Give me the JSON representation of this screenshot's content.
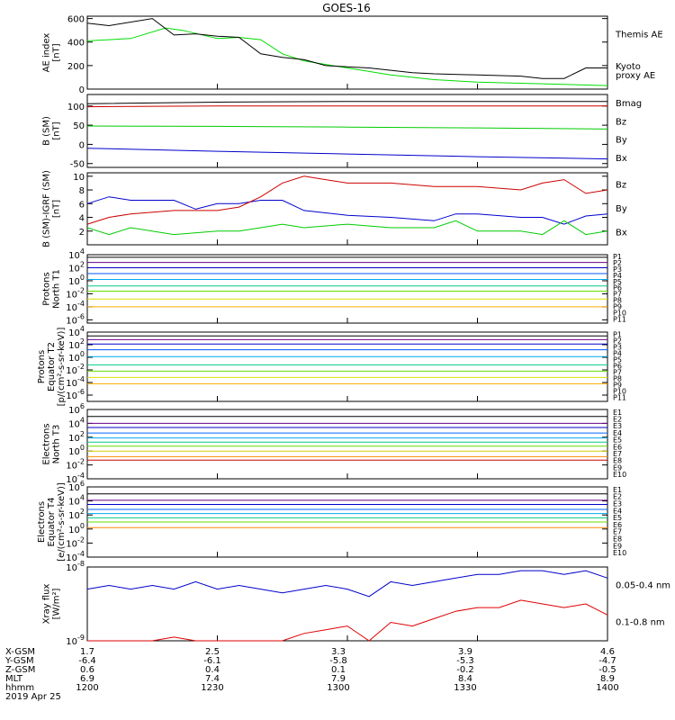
{
  "title": "GOES-16",
  "footer": {
    "rows": [
      {
        "label": "X-GSM",
        "values": [
          "1.7",
          "2.5",
          "3.3",
          "3.9",
          "4.6"
        ]
      },
      {
        "label": "Y-GSM",
        "values": [
          "-6.4",
          "-6.1",
          "-5.8",
          "-5.3",
          "-4.7"
        ]
      },
      {
        "label": "Z-GSM",
        "values": [
          "0.6",
          "0.4",
          "0.1",
          "-0.2",
          "-0.5"
        ]
      },
      {
        "label": "MLT",
        "values": [
          "6.9",
          "7.4",
          "7.9",
          "8.4",
          "8.9"
        ]
      },
      {
        "label": "hhmm",
        "values": [
          "1200",
          "1230",
          "1300",
          "1330",
          "1400"
        ]
      }
    ],
    "date": "2019 Apr 25"
  },
  "chart_data": [
    {
      "type": "line",
      "ylabel": "AE index\n[nT]",
      "ylim": [
        0,
        620
      ],
      "yticks": [
        {
          "v": 0,
          "l": "0"
        },
        {
          "v": 200,
          "l": "200"
        },
        {
          "v": 400,
          "l": "400"
        },
        {
          "v": 600,
          "l": "600"
        }
      ],
      "series": [
        {
          "name": "Kyoto\nproxy AE",
          "color": "#00dd00",
          "x": [
            0,
            10,
            18,
            22,
            30,
            35,
            40,
            45,
            50,
            55,
            60,
            65,
            70,
            75,
            80,
            90,
            100,
            110,
            120
          ],
          "y": [
            410,
            430,
            520,
            500,
            430,
            440,
            420,
            300,
            240,
            210,
            180,
            150,
            120,
            100,
            80,
            60,
            50,
            40,
            30
          ]
        },
        {
          "name": "Themis AE",
          "color": "#000000",
          "x": [
            0,
            5,
            15,
            20,
            25,
            30,
            35,
            40,
            45,
            50,
            55,
            60,
            65,
            70,
            75,
            80,
            90,
            100,
            105,
            110,
            115,
            120
          ],
          "y": [
            560,
            540,
            600,
            460,
            470,
            450,
            440,
            300,
            270,
            250,
            200,
            190,
            180,
            160,
            140,
            130,
            120,
            110,
            90,
            90,
            180,
            180
          ]
        }
      ]
    },
    {
      "type": "line",
      "ylabel": "B (SM)\n[nT]",
      "ylim": [
        -60,
        130
      ],
      "yticks": [
        {
          "v": -50,
          "l": "-50"
        },
        {
          "v": 0,
          "l": "0"
        },
        {
          "v": 50,
          "l": "50"
        },
        {
          "v": 100,
          "l": "100"
        }
      ],
      "series": [
        {
          "name": "Bx",
          "color": "#0000cc",
          "x": [
            0,
            30,
            60,
            90,
            120
          ],
          "y": [
            -10,
            -18,
            -25,
            -32,
            -38
          ]
        },
        {
          "name": "By",
          "color": "#00cc00",
          "x": [
            0,
            30,
            60,
            90,
            120
          ],
          "y": [
            48,
            47,
            45,
            43,
            40
          ]
        },
        {
          "name": "Bz",
          "color": "#cc0000",
          "x": [
            0,
            30,
            60,
            90,
            120
          ],
          "y": [
            98,
            100,
            100,
            100,
            100
          ]
        },
        {
          "name": "Bmag",
          "color": "#000000",
          "x": [
            0,
            30,
            60,
            90,
            120
          ],
          "y": [
            106,
            110,
            112,
            112,
            112
          ]
        }
      ]
    },
    {
      "type": "line",
      "ylabel": "B (SM)-IGRF (SM)\n[nT]",
      "ylim": [
        0,
        10.5
      ],
      "yticks": [
        {
          "v": 2,
          "l": "2"
        },
        {
          "v": 4,
          "l": "4"
        },
        {
          "v": 6,
          "l": "6"
        },
        {
          "v": 8,
          "l": "8"
        },
        {
          "v": 10,
          "l": "10"
        }
      ],
      "series": [
        {
          "name": "Bx",
          "color": "#0000cc",
          "x": [
            0,
            5,
            10,
            20,
            25,
            30,
            35,
            40,
            45,
            50,
            60,
            70,
            80,
            85,
            90,
            100,
            105,
            110,
            115,
            120
          ],
          "y": [
            6,
            7,
            6.5,
            6.5,
            5.2,
            6,
            6,
            6.5,
            6.5,
            5,
            4.3,
            4,
            3.5,
            4.5,
            4.5,
            4,
            4,
            3,
            4.2,
            4.5
          ]
        },
        {
          "name": "By",
          "color": "#00cc00",
          "x": [
            0,
            5,
            10,
            20,
            30,
            35,
            40,
            45,
            50,
            60,
            70,
            80,
            85,
            90,
            100,
            105,
            110,
            115,
            120
          ],
          "y": [
            2.5,
            1.5,
            2.5,
            1.5,
            2,
            2,
            2.5,
            3,
            2.5,
            3,
            2.5,
            2.5,
            3.5,
            2,
            2,
            1.5,
            3.5,
            1.5,
            2
          ]
        },
        {
          "name": "Bz",
          "color": "#cc0000",
          "x": [
            0,
            5,
            10,
            20,
            30,
            35,
            40,
            45,
            50,
            55,
            60,
            70,
            80,
            90,
            100,
            105,
            110,
            115,
            120
          ],
          "y": [
            3,
            4,
            4.5,
            5,
            5,
            5.5,
            7,
            9,
            10,
            9.5,
            9,
            9,
            8.5,
            8.5,
            8,
            9,
            9.5,
            7.5,
            8
          ]
        }
      ]
    },
    {
      "type": "line",
      "ylabel": "Protons\nNorth T1",
      "log": true,
      "ylim": [
        -6.5,
        4
      ],
      "yticks": [
        {
          "v": 4,
          "l": "10^4"
        },
        {
          "v": 2,
          "l": "10^2"
        },
        {
          "v": 0,
          "l": "10^0"
        },
        {
          "v": -2,
          "l": "10^-2"
        },
        {
          "v": -4,
          "l": "10^-4"
        },
        {
          "v": -6,
          "l": "10^-6"
        }
      ],
      "legend": [
        "P1",
        "P2",
        "P3",
        "P4",
        "P5",
        "P6",
        "P7",
        "P8",
        "P9",
        "P10",
        "P11"
      ],
      "series": [
        {
          "name": "P1",
          "color": "#000000",
          "y": [
            3.6
          ]
        },
        {
          "name": "P2",
          "color": "#660088",
          "y": [
            2.8
          ]
        },
        {
          "name": "P3",
          "color": "#0000cc",
          "y": [
            2.0
          ]
        },
        {
          "name": "P4",
          "color": "#0055ff",
          "y": [
            1.1
          ]
        },
        {
          "name": "P5",
          "color": "#00aaee",
          "y": [
            0.2
          ]
        },
        {
          "name": "P6",
          "color": "#00cc88",
          "y": [
            -0.8
          ]
        },
        {
          "name": "P7",
          "color": "#66dd00",
          "y": [
            -1.6
          ]
        },
        {
          "name": "P8",
          "color": "#dddd00",
          "y": [
            -2.8
          ]
        },
        {
          "name": "P9",
          "color": "#ffaa00",
          "y": [
            -4.0
          ]
        }
      ],
      "legendColors": [
        "#000000",
        "#660088",
        "#0000cc",
        "#0055ff",
        "#00aaee",
        "#00cc88",
        "#66dd00",
        "#dddd00",
        "#ffaa00",
        "#ff5500",
        "#cc0000"
      ]
    },
    {
      "type": "line",
      "ylabel": "Protons\nEquator T2\n[p/(cm²-s-sr-keV)]",
      "log": true,
      "ylim": [
        -7,
        4
      ],
      "yticks": [
        {
          "v": 4,
          "l": "10^4"
        },
        {
          "v": 2,
          "l": "10^2"
        },
        {
          "v": 0,
          "l": "10^0"
        },
        {
          "v": -2,
          "l": "10^-2"
        },
        {
          "v": -4,
          "l": "10^-4"
        },
        {
          "v": -6,
          "l": "10^-6"
        }
      ],
      "legend": [
        "P1",
        "P2",
        "P3",
        "P4",
        "P5",
        "P6",
        "P7",
        "P8",
        "P9",
        "P10",
        "P11"
      ],
      "series": [
        {
          "name": "P1",
          "color": "#000000",
          "y": [
            3.4
          ]
        },
        {
          "name": "P2",
          "color": "#660088",
          "y": [
            2.8
          ]
        },
        {
          "name": "P3",
          "color": "#0000cc",
          "y": [
            2.1
          ]
        },
        {
          "name": "P4",
          "color": "#0055ff",
          "y": [
            1.2
          ]
        },
        {
          "name": "P5",
          "color": "#00aaee",
          "y": [
            0.1
          ]
        },
        {
          "name": "P6",
          "color": "#00cc88",
          "y": [
            -1.2
          ]
        },
        {
          "name": "P7",
          "color": "#66dd00",
          "y": [
            -2.2
          ]
        },
        {
          "name": "P8",
          "color": "#dddd00",
          "y": [
            -3.2
          ]
        },
        {
          "name": "P9",
          "color": "#ffaa00",
          "y": [
            -4.2
          ]
        }
      ],
      "legendColors": [
        "#000000",
        "#660088",
        "#0000cc",
        "#0055ff",
        "#00aaee",
        "#00cc88",
        "#66dd00",
        "#dddd00",
        "#ffaa00",
        "#ff5500",
        "#cc0000"
      ]
    },
    {
      "type": "line",
      "ylabel": "Electrons\nNorth T3",
      "log": true,
      "ylim": [
        -4,
        6
      ],
      "yticks": [
        {
          "v": 6,
          "l": "10^6"
        },
        {
          "v": 4,
          "l": "10^4"
        },
        {
          "v": 2,
          "l": "10^2"
        },
        {
          "v": 0,
          "l": "10^0"
        },
        {
          "v": -2,
          "l": "10^-2"
        },
        {
          "v": -4,
          "l": "10^-4"
        }
      ],
      "legend": [
        "E1",
        "E2",
        "E3",
        "E4",
        "E5",
        "E6",
        "E7",
        "E8",
        "E9",
        "E10"
      ],
      "series": [
        {
          "name": "E1",
          "color": "#000000",
          "y": [
            5.0
          ]
        },
        {
          "name": "E2",
          "color": "#660088",
          "y": [
            4.0
          ]
        },
        {
          "name": "E3",
          "color": "#0000cc",
          "y": [
            3.4
          ]
        },
        {
          "name": "E4",
          "color": "#0066ff",
          "y": [
            2.6
          ]
        },
        {
          "name": "E5",
          "color": "#00aaee",
          "y": [
            1.9
          ]
        },
        {
          "name": "E6",
          "color": "#00cc88",
          "y": [
            1.3
          ]
        },
        {
          "name": "E7",
          "color": "#66dd00",
          "y": [
            0.7
          ]
        },
        {
          "name": "E8",
          "color": "#ddcc00",
          "y": [
            0.0
          ]
        },
        {
          "name": "E9",
          "color": "#ff8800",
          "y": [
            -0.8
          ]
        },
        {
          "name": "E10",
          "color": "#cc0000",
          "y": [
            -1.3
          ]
        }
      ],
      "legendColors": [
        "#000000",
        "#660088",
        "#0000cc",
        "#0066ff",
        "#00aaee",
        "#00cc88",
        "#66dd00",
        "#ddcc00",
        "#ff8800",
        "#cc0000"
      ]
    },
    {
      "type": "line",
      "ylabel": "Electrons\nEquator T4\n[e/(cm²-s-sr-keV)]",
      "log": true,
      "ylim": [
        -4,
        6
      ],
      "yticks": [
        {
          "v": 6,
          "l": "10^6"
        },
        {
          "v": 4,
          "l": "10^4"
        },
        {
          "v": 2,
          "l": "10^2"
        },
        {
          "v": 0,
          "l": "10^0"
        },
        {
          "v": -2,
          "l": "10^-2"
        },
        {
          "v": -4,
          "l": "10^-4"
        }
      ],
      "legend": [
        "E1",
        "E2",
        "E3",
        "E4",
        "E5",
        "E6",
        "E7",
        "E8",
        "E9",
        "E10"
      ],
      "series": [
        {
          "name": "E1",
          "color": "#000000",
          "y": [
            5.0
          ]
        },
        {
          "name": "E2",
          "color": "#660088",
          "y": [
            4.1
          ]
        },
        {
          "name": "E3",
          "color": "#0000cc",
          "y": [
            3.5
          ]
        },
        {
          "name": "E4",
          "color": "#0066ff",
          "y": [
            2.8
          ]
        },
        {
          "name": "E5",
          "color": "#00aaee",
          "y": [
            2.2
          ]
        },
        {
          "name": "E6",
          "color": "#00cc88",
          "y": [
            1.6
          ]
        },
        {
          "name": "E7",
          "color": "#66dd00",
          "y": [
            1.0
          ]
        },
        {
          "name": "E8",
          "color": "#ff8800",
          "y": [
            0.2
          ]
        }
      ],
      "legendColors": [
        "#000000",
        "#660088",
        "#0000cc",
        "#0066ff",
        "#00aaee",
        "#00cc88",
        "#66dd00",
        "#ddcc00",
        "#ff8800",
        "#cc0000"
      ]
    },
    {
      "type": "line",
      "ylabel": "Xray flux\n[W/m²]",
      "log": true,
      "ylim": [
        -9,
        -8
      ],
      "yticks": [
        {
          "v": -8,
          "l": "10^-8"
        },
        {
          "v": -9,
          "l": "10^-9"
        }
      ],
      "series": [
        {
          "name": "0.1-0.8 nm",
          "color": "#dd0000",
          "x": [
            0,
            5,
            10,
            15,
            20,
            25,
            30,
            35,
            40,
            45,
            50,
            55,
            60,
            65,
            70,
            75,
            80,
            85,
            90,
            95,
            100,
            105,
            110,
            115,
            120
          ],
          "y": [
            -9,
            -9,
            -9,
            -9,
            -8.95,
            -9,
            -9,
            -9,
            -9,
            -9,
            -8.9,
            -8.85,
            -8.8,
            -9,
            -8.75,
            -8.8,
            -8.7,
            -8.6,
            -8.55,
            -8.55,
            -8.45,
            -8.5,
            -8.55,
            -8.5,
            -8.65
          ]
        },
        {
          "name": "0.05-0.4 nm",
          "color": "#0000cc",
          "x": [
            0,
            5,
            10,
            15,
            20,
            25,
            30,
            35,
            40,
            45,
            50,
            55,
            60,
            65,
            70,
            75,
            80,
            85,
            90,
            95,
            100,
            105,
            110,
            115,
            120
          ],
          "y": [
            -8.3,
            -8.25,
            -8.3,
            -8.25,
            -8.3,
            -8.2,
            -8.3,
            -8.25,
            -8.3,
            -8.35,
            -8.3,
            -8.25,
            -8.3,
            -8.4,
            -8.2,
            -8.25,
            -8.2,
            -8.15,
            -8.1,
            -8.1,
            -8.05,
            -8.05,
            -8.1,
            -8.05,
            -8.15
          ]
        }
      ]
    }
  ]
}
